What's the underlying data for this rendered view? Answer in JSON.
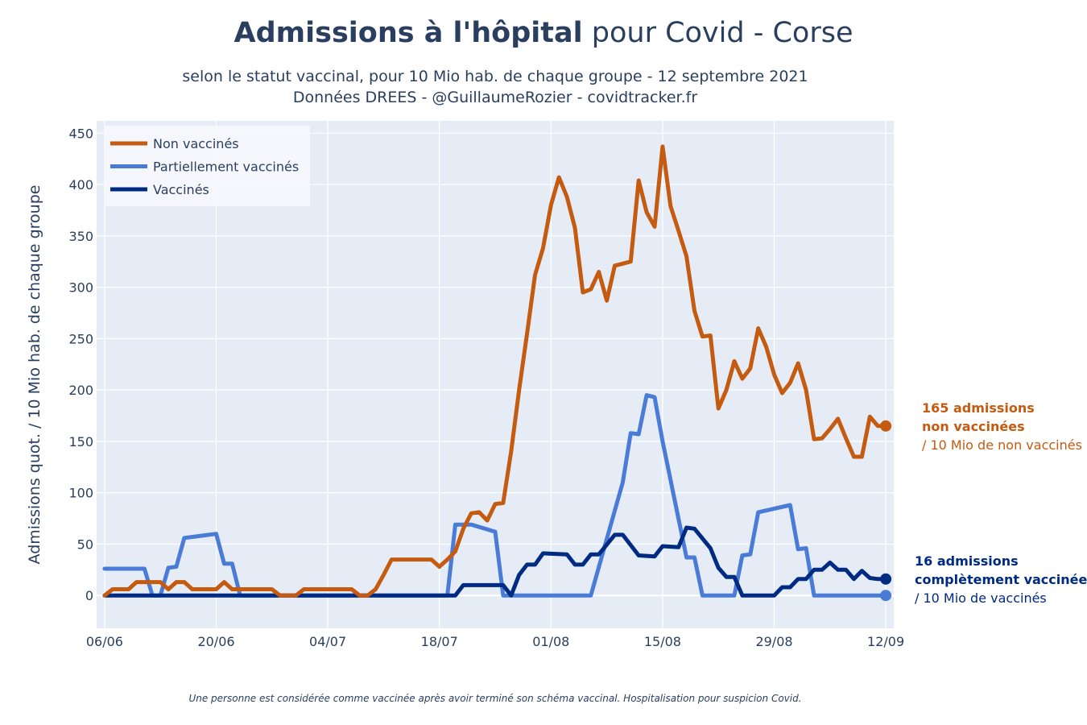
{
  "chart_data": {
    "type": "line",
    "title_bold": "Admissions à l'hôpital",
    "title_rest": " pour Covid - Corse",
    "subtitle_line1": "selon le statut vaccinal, pour 10 Mio hab. de chaque groupe - 12 septembre 2021",
    "subtitle_line2": "Données DREES - @GuillaumeRozier - covidtracker.fr",
    "ylabel": "Admissions quot. / 10 Mio hab. de chaque groupe",
    "xlabel": "",
    "footnote": "Une personne est considérée comme vaccinée après avoir terminé son schéma vaccinal. Hospitalisation pour suspicion Covid.",
    "x_start": "2021-06-06",
    "x_end": "2021-09-12",
    "xlim": [
      -1,
      99
    ],
    "ylim": [
      -32,
      462
    ],
    "y_ticks": [
      0,
      50,
      100,
      150,
      200,
      250,
      300,
      350,
      400,
      450
    ],
    "x_ticks": [
      {
        "day": 0,
        "label": "06/06"
      },
      {
        "day": 14,
        "label": "20/06"
      },
      {
        "day": 28,
        "label": "04/07"
      },
      {
        "day": 42,
        "label": "18/07"
      },
      {
        "day": 56,
        "label": "01/08"
      },
      {
        "day": 70,
        "label": "15/08"
      },
      {
        "day": 84,
        "label": "29/08"
      },
      {
        "day": 98,
        "label": "12/09"
      }
    ],
    "grid": true,
    "legend_position": "top-left",
    "series": [
      {
        "name": "Non vaccinés",
        "color": "#c55a11",
        "points": [
          [
            0,
            0
          ],
          [
            1,
            6
          ],
          [
            2,
            6
          ],
          [
            3,
            6
          ],
          [
            4,
            13
          ],
          [
            5,
            13
          ],
          [
            6,
            13
          ],
          [
            7,
            13
          ],
          [
            8,
            6
          ],
          [
            9,
            13
          ],
          [
            10,
            13
          ],
          [
            11,
            6
          ],
          [
            12,
            6
          ],
          [
            13,
            6
          ],
          [
            14,
            6
          ],
          [
            15,
            13
          ],
          [
            16,
            6
          ],
          [
            17,
            6
          ],
          [
            18,
            6
          ],
          [
            19,
            6
          ],
          [
            20,
            6
          ],
          [
            21,
            6
          ],
          [
            22,
            0
          ],
          [
            23,
            0
          ],
          [
            24,
            0
          ],
          [
            25,
            6
          ],
          [
            26,
            6
          ],
          [
            27,
            6
          ],
          [
            28,
            6
          ],
          [
            29,
            6
          ],
          [
            30,
            6
          ],
          [
            31,
            6
          ],
          [
            32,
            0
          ],
          [
            33,
            0
          ],
          [
            34,
            6
          ],
          [
            35,
            20
          ],
          [
            36,
            35
          ],
          [
            37,
            35
          ],
          [
            38,
            35
          ],
          [
            39,
            35
          ],
          [
            40,
            35
          ],
          [
            41,
            35
          ],
          [
            42,
            28
          ],
          [
            43,
            35
          ],
          [
            44,
            43
          ],
          [
            45,
            65
          ],
          [
            46,
            80
          ],
          [
            47,
            81
          ],
          [
            48,
            73
          ],
          [
            49,
            89
          ],
          [
            50,
            90
          ],
          [
            51,
            140
          ],
          [
            52,
            200
          ],
          [
            53,
            255
          ],
          [
            54,
            312
          ],
          [
            55,
            338
          ],
          [
            56,
            380
          ],
          [
            57,
            407
          ],
          [
            58,
            388
          ],
          [
            59,
            358
          ],
          [
            60,
            295
          ],
          [
            61,
            298
          ],
          [
            62,
            315
          ],
          [
            63,
            287
          ],
          [
            64,
            321
          ],
          [
            65,
            323
          ],
          [
            66,
            325
          ],
          [
            67,
            404
          ],
          [
            68,
            373
          ],
          [
            69,
            359
          ],
          [
            70,
            437
          ],
          [
            71,
            379
          ],
          [
            72,
            355
          ],
          [
            73,
            330
          ],
          [
            74,
            277
          ],
          [
            75,
            252
          ],
          [
            76,
            253
          ],
          [
            77,
            182
          ],
          [
            78,
            200
          ],
          [
            79,
            228
          ],
          [
            80,
            211
          ],
          [
            81,
            221
          ],
          [
            82,
            260
          ],
          [
            83,
            242
          ],
          [
            84,
            215
          ],
          [
            85,
            197
          ],
          [
            86,
            207
          ],
          [
            87,
            226
          ],
          [
            88,
            200
          ],
          [
            89,
            152
          ],
          [
            90,
            153
          ],
          [
            91,
            162
          ],
          [
            92,
            172
          ],
          [
            93,
            153
          ],
          [
            94,
            135
          ],
          [
            95,
            135
          ],
          [
            96,
            174
          ],
          [
            97,
            165
          ],
          [
            98,
            165
          ]
        ],
        "annotation_bold_line1": "165 admissions",
        "annotation_bold_line2": "non vaccinées",
        "annotation_line3": "/ 10 Mio de non vaccinés"
      },
      {
        "name": "Partiellement vaccinés",
        "color": "#4a7bd6",
        "points": [
          [
            0,
            26
          ],
          [
            5,
            26
          ],
          [
            6,
            0
          ],
          [
            7,
            0
          ],
          [
            8,
            27
          ],
          [
            9,
            28
          ],
          [
            10,
            56
          ],
          [
            14,
            60
          ],
          [
            15,
            31
          ],
          [
            16,
            31
          ],
          [
            17,
            0
          ],
          [
            42,
            0
          ],
          [
            43,
            0
          ],
          [
            44,
            69
          ],
          [
            46,
            69
          ],
          [
            49,
            62
          ],
          [
            50,
            0
          ],
          [
            61,
            0
          ],
          [
            65,
            110
          ],
          [
            66,
            158
          ],
          [
            67,
            157
          ],
          [
            68,
            195
          ],
          [
            69,
            193
          ],
          [
            70,
            150
          ],
          [
            73,
            37
          ],
          [
            74,
            37
          ],
          [
            75,
            0
          ],
          [
            79,
            0
          ],
          [
            80,
            39
          ],
          [
            81,
            40
          ],
          [
            82,
            81
          ],
          [
            86,
            88
          ],
          [
            87,
            45
          ],
          [
            88,
            46
          ],
          [
            89,
            0
          ],
          [
            98,
            0
          ]
        ],
        "annotation_bold_line1": "",
        "annotation_bold_line2": "",
        "annotation_line3": ""
      },
      {
        "name": "Vaccinés",
        "color": "#002b82",
        "points": [
          [
            0,
            0
          ],
          [
            44,
            0
          ],
          [
            45,
            10
          ],
          [
            50,
            10
          ],
          [
            51,
            0
          ],
          [
            52,
            20
          ],
          [
            53,
            30
          ],
          [
            54,
            30
          ],
          [
            55,
            41
          ],
          [
            58,
            40
          ],
          [
            59,
            30
          ],
          [
            60,
            30
          ],
          [
            61,
            40
          ],
          [
            62,
            40
          ],
          [
            64,
            59
          ],
          [
            65,
            59
          ],
          [
            67,
            39
          ],
          [
            69,
            38
          ],
          [
            70,
            48
          ],
          [
            72,
            47
          ],
          [
            73,
            66
          ],
          [
            74,
            65
          ],
          [
            76,
            46
          ],
          [
            77,
            27
          ],
          [
            78,
            18
          ],
          [
            79,
            18
          ],
          [
            80,
            0
          ],
          [
            84,
            0
          ],
          [
            85,
            8
          ],
          [
            86,
            8
          ],
          [
            87,
            16
          ],
          [
            88,
            16
          ],
          [
            89,
            25
          ],
          [
            90,
            25
          ],
          [
            91,
            32
          ],
          [
            92,
            25
          ],
          [
            93,
            25
          ],
          [
            94,
            16
          ],
          [
            95,
            24
          ],
          [
            96,
            17
          ],
          [
            97,
            16
          ],
          [
            98,
            16
          ]
        ],
        "annotation_bold_line1": "16 admissions",
        "annotation_bold_line2": "complètement vaccinée",
        "annotation_line3": "/ 10 Mio de vaccinés"
      }
    ]
  }
}
